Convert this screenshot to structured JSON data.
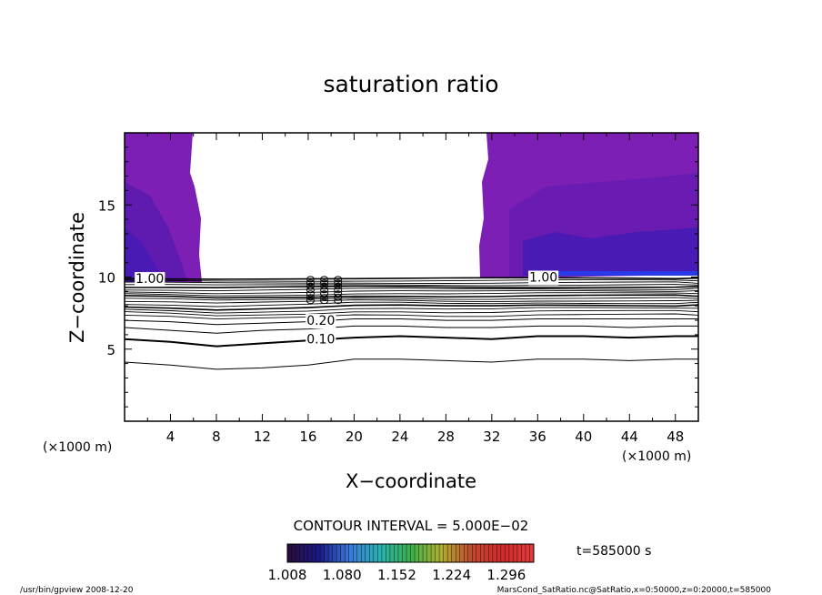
{
  "chart_data": {
    "type": "contour",
    "title": "saturation ratio",
    "xlabel": "X−coordinate",
    "ylabel": "Z−coordinate",
    "x_unit": "(×1000 m)",
    "xlim": [
      0,
      50
    ],
    "ylim": [
      0,
      20
    ],
    "x_ticks": [
      "4",
      "8",
      "12",
      "16",
      "20",
      "24",
      "28",
      "32",
      "36",
      "40",
      "44",
      "48"
    ],
    "x_tick_values": [
      4,
      8,
      12,
      16,
      20,
      24,
      28,
      32,
      36,
      40,
      44,
      48
    ],
    "y_ticks": [
      "5",
      "10",
      "15"
    ],
    "y_tick_values": [
      5,
      10,
      15
    ],
    "contour_interval_text": "CONTOUR INTERVAL = 5.000E−02",
    "contour_labels": [
      {
        "text": "0.10",
        "x": 17.1,
        "z": 5.7
      },
      {
        "text": "0.20",
        "x": 17.1,
        "z": 7.0
      },
      {
        "text": "1.00",
        "x": 2.2,
        "z": 9.9
      },
      {
        "text": "1.00",
        "x": 36.5,
        "z": 10.0
      }
    ],
    "contours": [
      {
        "level": 0.05,
        "x": [
          0,
          4,
          8,
          12,
          16,
          20,
          24,
          28,
          32,
          36,
          40,
          44,
          48,
          50
        ],
        "z": [
          4.1,
          3.9,
          3.6,
          3.7,
          3.9,
          4.3,
          4.3,
          4.2,
          4.1,
          4.3,
          4.3,
          4.2,
          4.3,
          4.3
        ]
      },
      {
        "level": 0.1,
        "x": [
          0,
          4,
          8,
          12,
          16,
          20,
          24,
          28,
          32,
          36,
          40,
          44,
          48,
          50
        ],
        "z": [
          5.7,
          5.5,
          5.2,
          5.4,
          5.6,
          5.8,
          5.9,
          5.8,
          5.7,
          5.9,
          5.9,
          5.8,
          5.9,
          5.9
        ]
      },
      {
        "level": 0.15,
        "x": [
          0,
          4,
          8,
          12,
          16,
          20,
          24,
          28,
          32,
          36,
          40,
          44,
          48,
          50
        ],
        "z": [
          6.5,
          6.3,
          6.1,
          6.3,
          6.4,
          6.6,
          6.6,
          6.5,
          6.5,
          6.6,
          6.6,
          6.5,
          6.6,
          6.6
        ]
      },
      {
        "level": 0.2,
        "x": [
          0,
          4,
          8,
          12,
          16,
          20,
          24,
          28,
          32,
          36,
          40,
          44,
          48,
          50
        ],
        "z": [
          7.0,
          6.9,
          6.7,
          6.8,
          6.9,
          7.1,
          7.1,
          7.0,
          7.0,
          7.1,
          7.1,
          7.1,
          7.1,
          7.1
        ]
      }
    ],
    "colorbar": {
      "tick_labels": [
        "1.008",
        "1.080",
        "1.152",
        "1.224",
        "1.296"
      ],
      "tick_values": [
        1.008,
        1.08,
        1.152,
        1.224,
        1.296
      ],
      "range": [
        1.008,
        1.332
      ],
      "colors": [
        "#2a0c3c",
        "#1a1a8a",
        "#3a7ad8",
        "#2ab3b0",
        "#3ab04a",
        "#b0b030",
        "#c04a30",
        "#d02a2a",
        "#e03a3a"
      ]
    },
    "colors": {
      "fill_main": "#7d1fb4",
      "fill_dark": "#5a1aa8",
      "fill_blue": "#3a1fb0",
      "fill_bright_blue": "#2a2ae8"
    },
    "time_label": "t=585000 s"
  },
  "footer": {
    "left": "/usr/bin/gpview  2008-12-20",
    "right": "MarsCond_SatRatio.nc@SatRatio,x=0:50000,z=0:20000,t=585000"
  }
}
